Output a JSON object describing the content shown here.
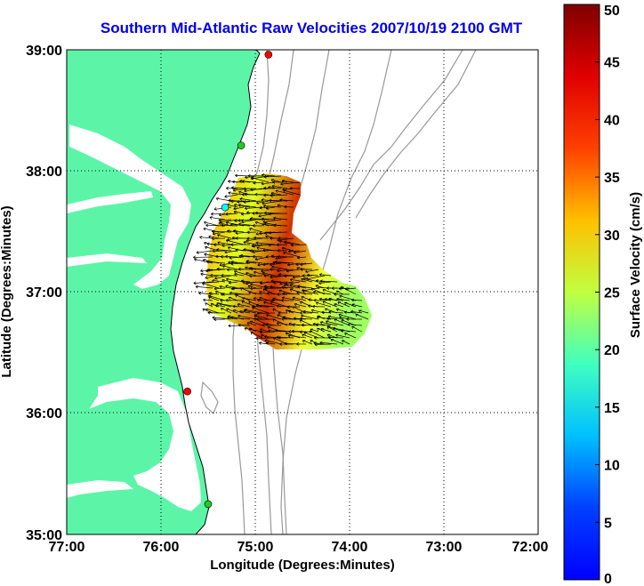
{
  "title": "Southern Mid-Atlantic Raw Velocities 2007/10/19 2100 GMT",
  "map": {
    "x_label": "Longitude (Degrees:Minutes)",
    "y_label": "Latitude (Degrees:Minutes)",
    "x_ticks": [
      "77:00",
      "76:00",
      "75:00",
      "74:00",
      "73:00",
      "72:00"
    ],
    "x_tick_values": [
      -77,
      -76,
      -75,
      -74,
      -73,
      -72
    ],
    "y_ticks": [
      "39:00",
      "38:00",
      "37:00",
      "36:00",
      "35:00"
    ],
    "y_tick_values": [
      39,
      38,
      37,
      36,
      35
    ],
    "lon_range": [
      -77,
      -72
    ],
    "lat_range": [
      35,
      39
    ],
    "grid": "dotted",
    "land_color": "#5cf5a8",
    "bathymetry_color": "#999999",
    "stations": [
      {
        "lon": -74.86,
        "lat": 38.96,
        "color": "#ff0000"
      },
      {
        "lon": -75.15,
        "lat": 38.21,
        "color": "#22cc22"
      },
      {
        "lon": -75.32,
        "lat": 37.7,
        "color": "#00ffff"
      },
      {
        "lon": -75.72,
        "lat": 36.18,
        "color": "#ff0000"
      },
      {
        "lon": -75.5,
        "lat": 35.25,
        "color": "#22cc22"
      }
    ]
  },
  "colorbar": {
    "label": "Surface Velocity (cm/s)",
    "ticks": [
      "0",
      "5",
      "10",
      "15",
      "20",
      "25",
      "30",
      "35",
      "40",
      "45",
      "50"
    ],
    "tick_values": [
      0,
      5,
      10,
      15,
      20,
      25,
      30,
      35,
      40,
      45,
      50
    ],
    "range": [
      0,
      50
    ],
    "colormap": "jet"
  }
}
